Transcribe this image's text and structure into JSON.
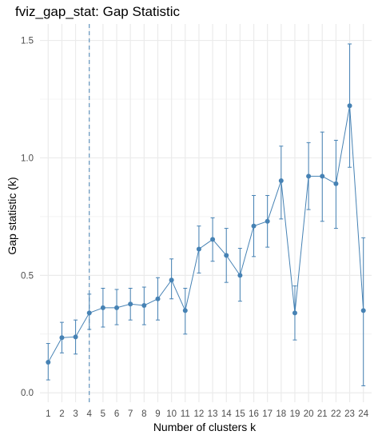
{
  "chart_data": {
    "type": "line",
    "title": "fviz_gap_stat: Gap Statistic",
    "xlabel": "Number of clusters k",
    "ylabel": "Gap statistic (k)",
    "x": [
      1,
      2,
      3,
      4,
      5,
      6,
      7,
      8,
      9,
      10,
      11,
      12,
      13,
      14,
      15,
      16,
      17,
      18,
      19,
      20,
      21,
      22,
      23,
      24
    ],
    "y": [
      0.13,
      0.235,
      0.238,
      0.34,
      0.362,
      0.362,
      0.378,
      0.372,
      0.4,
      0.48,
      0.35,
      0.612,
      0.653,
      0.585,
      0.5,
      0.71,
      0.73,
      0.903,
      0.34,
      0.922,
      0.922,
      0.89,
      1.222,
      0.35
    ],
    "error_lower": [
      0.055,
      0.17,
      0.165,
      0.27,
      0.28,
      0.29,
      0.31,
      0.29,
      0.31,
      0.4,
      0.25,
      0.51,
      0.56,
      0.47,
      0.39,
      0.58,
      0.62,
      0.74,
      0.225,
      0.78,
      0.73,
      0.7,
      0.96,
      0.03
    ],
    "error_upper": [
      0.21,
      0.3,
      0.31,
      0.42,
      0.445,
      0.44,
      0.445,
      0.45,
      0.49,
      0.57,
      0.445,
      0.71,
      0.745,
      0.7,
      0.615,
      0.84,
      0.84,
      1.05,
      0.455,
      1.065,
      1.11,
      1.075,
      1.485,
      0.66
    ],
    "ylim": [
      -0.04,
      1.57
    ],
    "y_ticks": [
      0.0,
      0.5,
      1.0,
      1.5
    ],
    "y_tick_labels": [
      "0.0",
      "0.5",
      "1.0",
      "1.5"
    ],
    "optimal_k": 4,
    "grid": true,
    "legend": "none",
    "colors": {
      "series": "#4682B4",
      "vline": "#4682B4",
      "grid": "#ebebeb"
    }
  }
}
